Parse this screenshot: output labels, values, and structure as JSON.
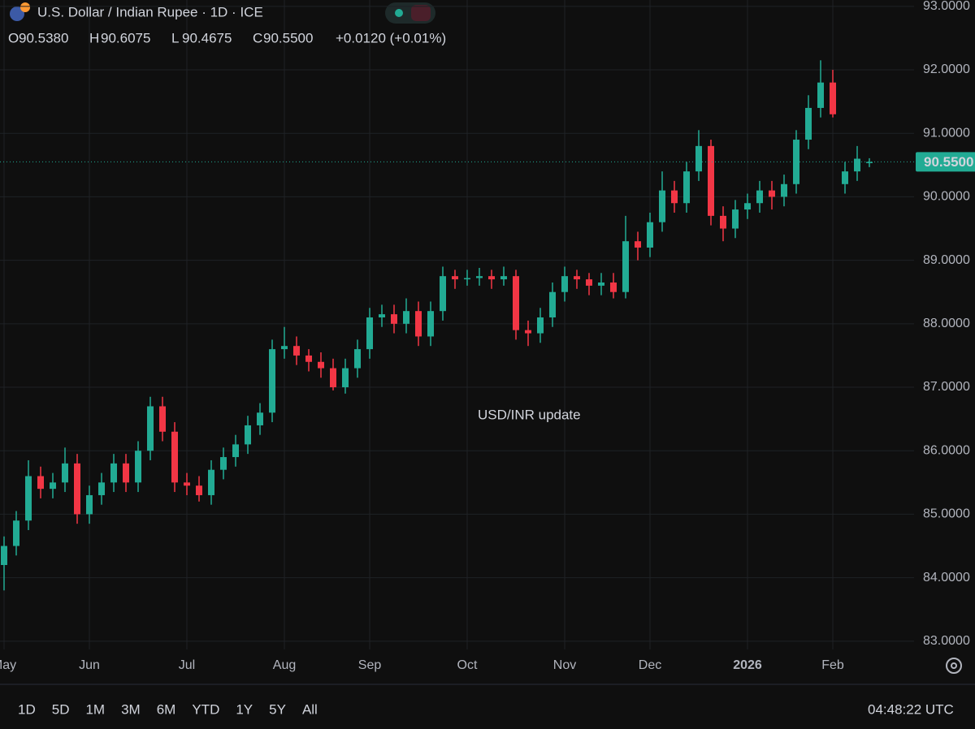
{
  "chart_data": {
    "type": "candlestick",
    "title": "U.S. Dollar / Indian Rupee · 1D · ICE",
    "ohlc_keys": [
      "O",
      "H",
      "L",
      "C"
    ],
    "ohlc_texts": [
      "90.5380",
      "90.6075",
      "90.4675",
      "90.5500"
    ],
    "change_text": "+0.0120 (+0.01%)",
    "annotation": "USD/INR update",
    "ranges": [
      "1D",
      "5D",
      "1M",
      "3M",
      "6M",
      "YTD",
      "1Y",
      "5Y",
      "All"
    ],
    "clock": "04:48:22 UTC",
    "grid": true,
    "up_color": "#22ab94",
    "down_color": "#f23645",
    "annotation_color": "#e0201e",
    "ylim": [
      82.87,
      93.1
    ],
    "yticks": [
      {
        "value": 83,
        "label": "83.0000"
      },
      {
        "value": 84,
        "label": "84.0000"
      },
      {
        "value": 85,
        "label": "85.0000"
      },
      {
        "value": 86,
        "label": "86.0000"
      },
      {
        "value": 87,
        "label": "87.0000"
      },
      {
        "value": 88,
        "label": "88.0000"
      },
      {
        "value": 89,
        "label": "89.0000"
      },
      {
        "value": 90,
        "label": "90.0000"
      },
      {
        "value": 91,
        "label": "91.0000"
      },
      {
        "value": 92,
        "label": "92.0000"
      },
      {
        "value": 93,
        "label": "93.0000"
      }
    ],
    "last_price": {
      "value": 90.55,
      "label": "90.5500"
    },
    "categories": [
      "May",
      null,
      null,
      null,
      null,
      null,
      null,
      "Jun",
      null,
      null,
      null,
      null,
      null,
      null,
      null,
      "Jul",
      null,
      null,
      null,
      null,
      null,
      null,
      null,
      "Aug",
      null,
      null,
      null,
      null,
      null,
      null,
      "Sep",
      null,
      null,
      null,
      null,
      null,
      null,
      null,
      "Oct",
      null,
      null,
      null,
      null,
      null,
      null,
      null,
      "Nov",
      null,
      null,
      null,
      null,
      null,
      null,
      "Dec",
      null,
      null,
      null,
      null,
      null,
      null,
      null,
      "2026",
      null,
      null,
      null,
      null,
      null,
      null,
      "Feb",
      null,
      null,
      null
    ],
    "open": [
      84.2,
      84.5,
      84.9,
      85.6,
      85.4,
      85.5,
      85.8,
      85.0,
      85.3,
      85.5,
      85.8,
      85.5,
      86.0,
      86.7,
      86.3,
      85.5,
      85.45,
      85.3,
      85.7,
      85.9,
      86.1,
      86.4,
      86.6,
      87.6,
      87.65,
      87.5,
      87.4,
      87.3,
      87.0,
      87.3,
      87.6,
      88.1,
      88.15,
      88.0,
      88.2,
      87.8,
      88.2,
      88.75,
      88.7,
      88.72,
      88.75,
      88.7,
      88.75,
      87.9,
      87.85,
      88.1,
      88.5,
      88.75,
      88.7,
      88.6,
      88.65,
      88.5,
      89.3,
      89.2,
      89.6,
      90.1,
      89.9,
      90.4,
      90.8,
      89.7,
      89.5,
      89.8,
      89.9,
      90.1,
      90.0,
      90.2,
      90.9,
      91.4,
      91.8,
      90.2,
      90.4,
      90.538
    ],
    "high": [
      84.65,
      85.05,
      85.85,
      85.75,
      85.65,
      86.05,
      85.95,
      85.45,
      85.65,
      85.95,
      85.95,
      86.15,
      86.85,
      86.85,
      86.45,
      85.65,
      85.6,
      85.85,
      86.05,
      86.25,
      86.55,
      86.75,
      87.75,
      87.95,
      87.8,
      87.6,
      87.55,
      87.45,
      87.45,
      87.75,
      88.25,
      88.3,
      88.3,
      88.4,
      88.35,
      88.35,
      88.9,
      88.85,
      88.85,
      88.88,
      88.85,
      88.9,
      88.85,
      88.05,
      88.25,
      88.65,
      88.9,
      88.85,
      88.8,
      88.8,
      88.8,
      89.7,
      89.45,
      89.75,
      90.4,
      90.25,
      90.55,
      91.05,
      90.9,
      89.85,
      89.95,
      90.05,
      90.25,
      90.25,
      90.35,
      91.05,
      91.6,
      92.15,
      92.0,
      90.55,
      90.8,
      90.6075
    ],
    "low": [
      83.8,
      84.35,
      84.75,
      85.25,
      85.25,
      85.35,
      84.85,
      84.85,
      85.15,
      85.35,
      85.35,
      85.35,
      85.85,
      86.15,
      85.35,
      85.3,
      85.2,
      85.15,
      85.55,
      85.75,
      85.95,
      86.25,
      86.45,
      87.45,
      87.35,
      87.25,
      87.15,
      86.95,
      86.9,
      87.15,
      87.45,
      87.95,
      87.85,
      87.85,
      87.65,
      87.65,
      88.05,
      88.55,
      88.6,
      88.6,
      88.55,
      88.6,
      87.75,
      87.65,
      87.7,
      87.95,
      88.35,
      88.55,
      88.45,
      88.45,
      88.4,
      88.4,
      89.0,
      89.05,
      89.45,
      89.75,
      89.75,
      90.25,
      89.55,
      89.3,
      89.35,
      89.65,
      89.75,
      89.8,
      89.85,
      90.05,
      90.75,
      91.25,
      91.25,
      90.05,
      90.25,
      90.4675
    ],
    "close": [
      84.5,
      84.9,
      85.6,
      85.4,
      85.5,
      85.8,
      85.0,
      85.3,
      85.5,
      85.8,
      85.5,
      86.0,
      86.7,
      86.3,
      85.5,
      85.45,
      85.3,
      85.7,
      85.9,
      86.1,
      86.4,
      86.6,
      87.6,
      87.65,
      87.5,
      87.4,
      87.3,
      87.0,
      87.3,
      87.6,
      88.1,
      88.15,
      88.0,
      88.2,
      87.8,
      88.2,
      88.75,
      88.7,
      88.72,
      88.75,
      88.7,
      88.75,
      87.9,
      87.85,
      88.1,
      88.5,
      88.75,
      88.7,
      88.6,
      88.65,
      88.5,
      89.3,
      89.2,
      89.6,
      90.1,
      89.9,
      90.4,
      90.8,
      89.7,
      89.5,
      89.8,
      89.9,
      90.1,
      90.0,
      90.2,
      90.9,
      91.4,
      91.8,
      91.3,
      90.4,
      90.6,
      90.55
    ]
  }
}
